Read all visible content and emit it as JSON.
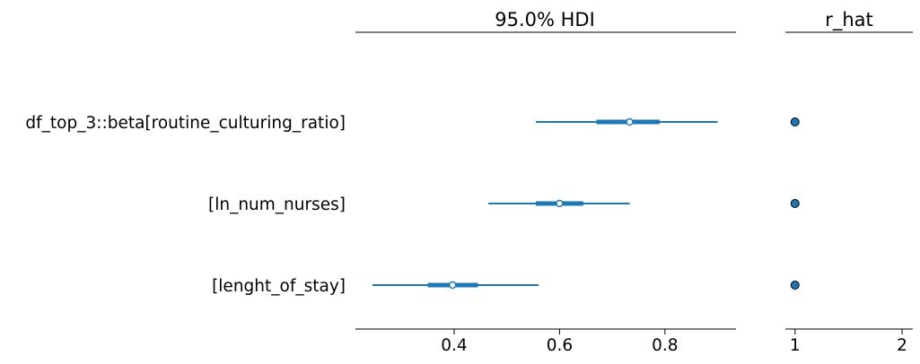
{
  "chart_data": [
    {
      "type": "forest",
      "title": "95.0% HDI",
      "categories": [
        "df_top_3::beta[routine_culturing_ratio]",
        "[ln_num_nurses]",
        "[lenght_of_stay]"
      ],
      "hdi_low": [
        0.555,
        0.465,
        0.245
      ],
      "iqr_low": [
        0.67,
        0.555,
        0.35
      ],
      "median": [
        0.733,
        0.6,
        0.397
      ],
      "iqr_high": [
        0.79,
        0.645,
        0.445
      ],
      "hdi_high": [
        0.9,
        0.733,
        0.56
      ],
      "xlim": [
        0.2127,
        0.9348
      ],
      "xticks": [
        0.4,
        0.6,
        0.8
      ],
      "xtick_labels": [
        "0.4",
        "0.6",
        "0.8"
      ],
      "color": "#1f77b4"
    },
    {
      "type": "scatter",
      "title": "r_hat",
      "categories": [
        "df_top_3::beta[routine_culturing_ratio]",
        "[ln_num_nurses]",
        "[lenght_of_stay]"
      ],
      "values": [
        1.0,
        1.0,
        1.0
      ],
      "xlim": [
        0.91,
        2.1
      ],
      "xticks": [
        1,
        2
      ],
      "xtick_labels": [
        "1",
        "2"
      ],
      "color": "#1f77b4"
    }
  ]
}
